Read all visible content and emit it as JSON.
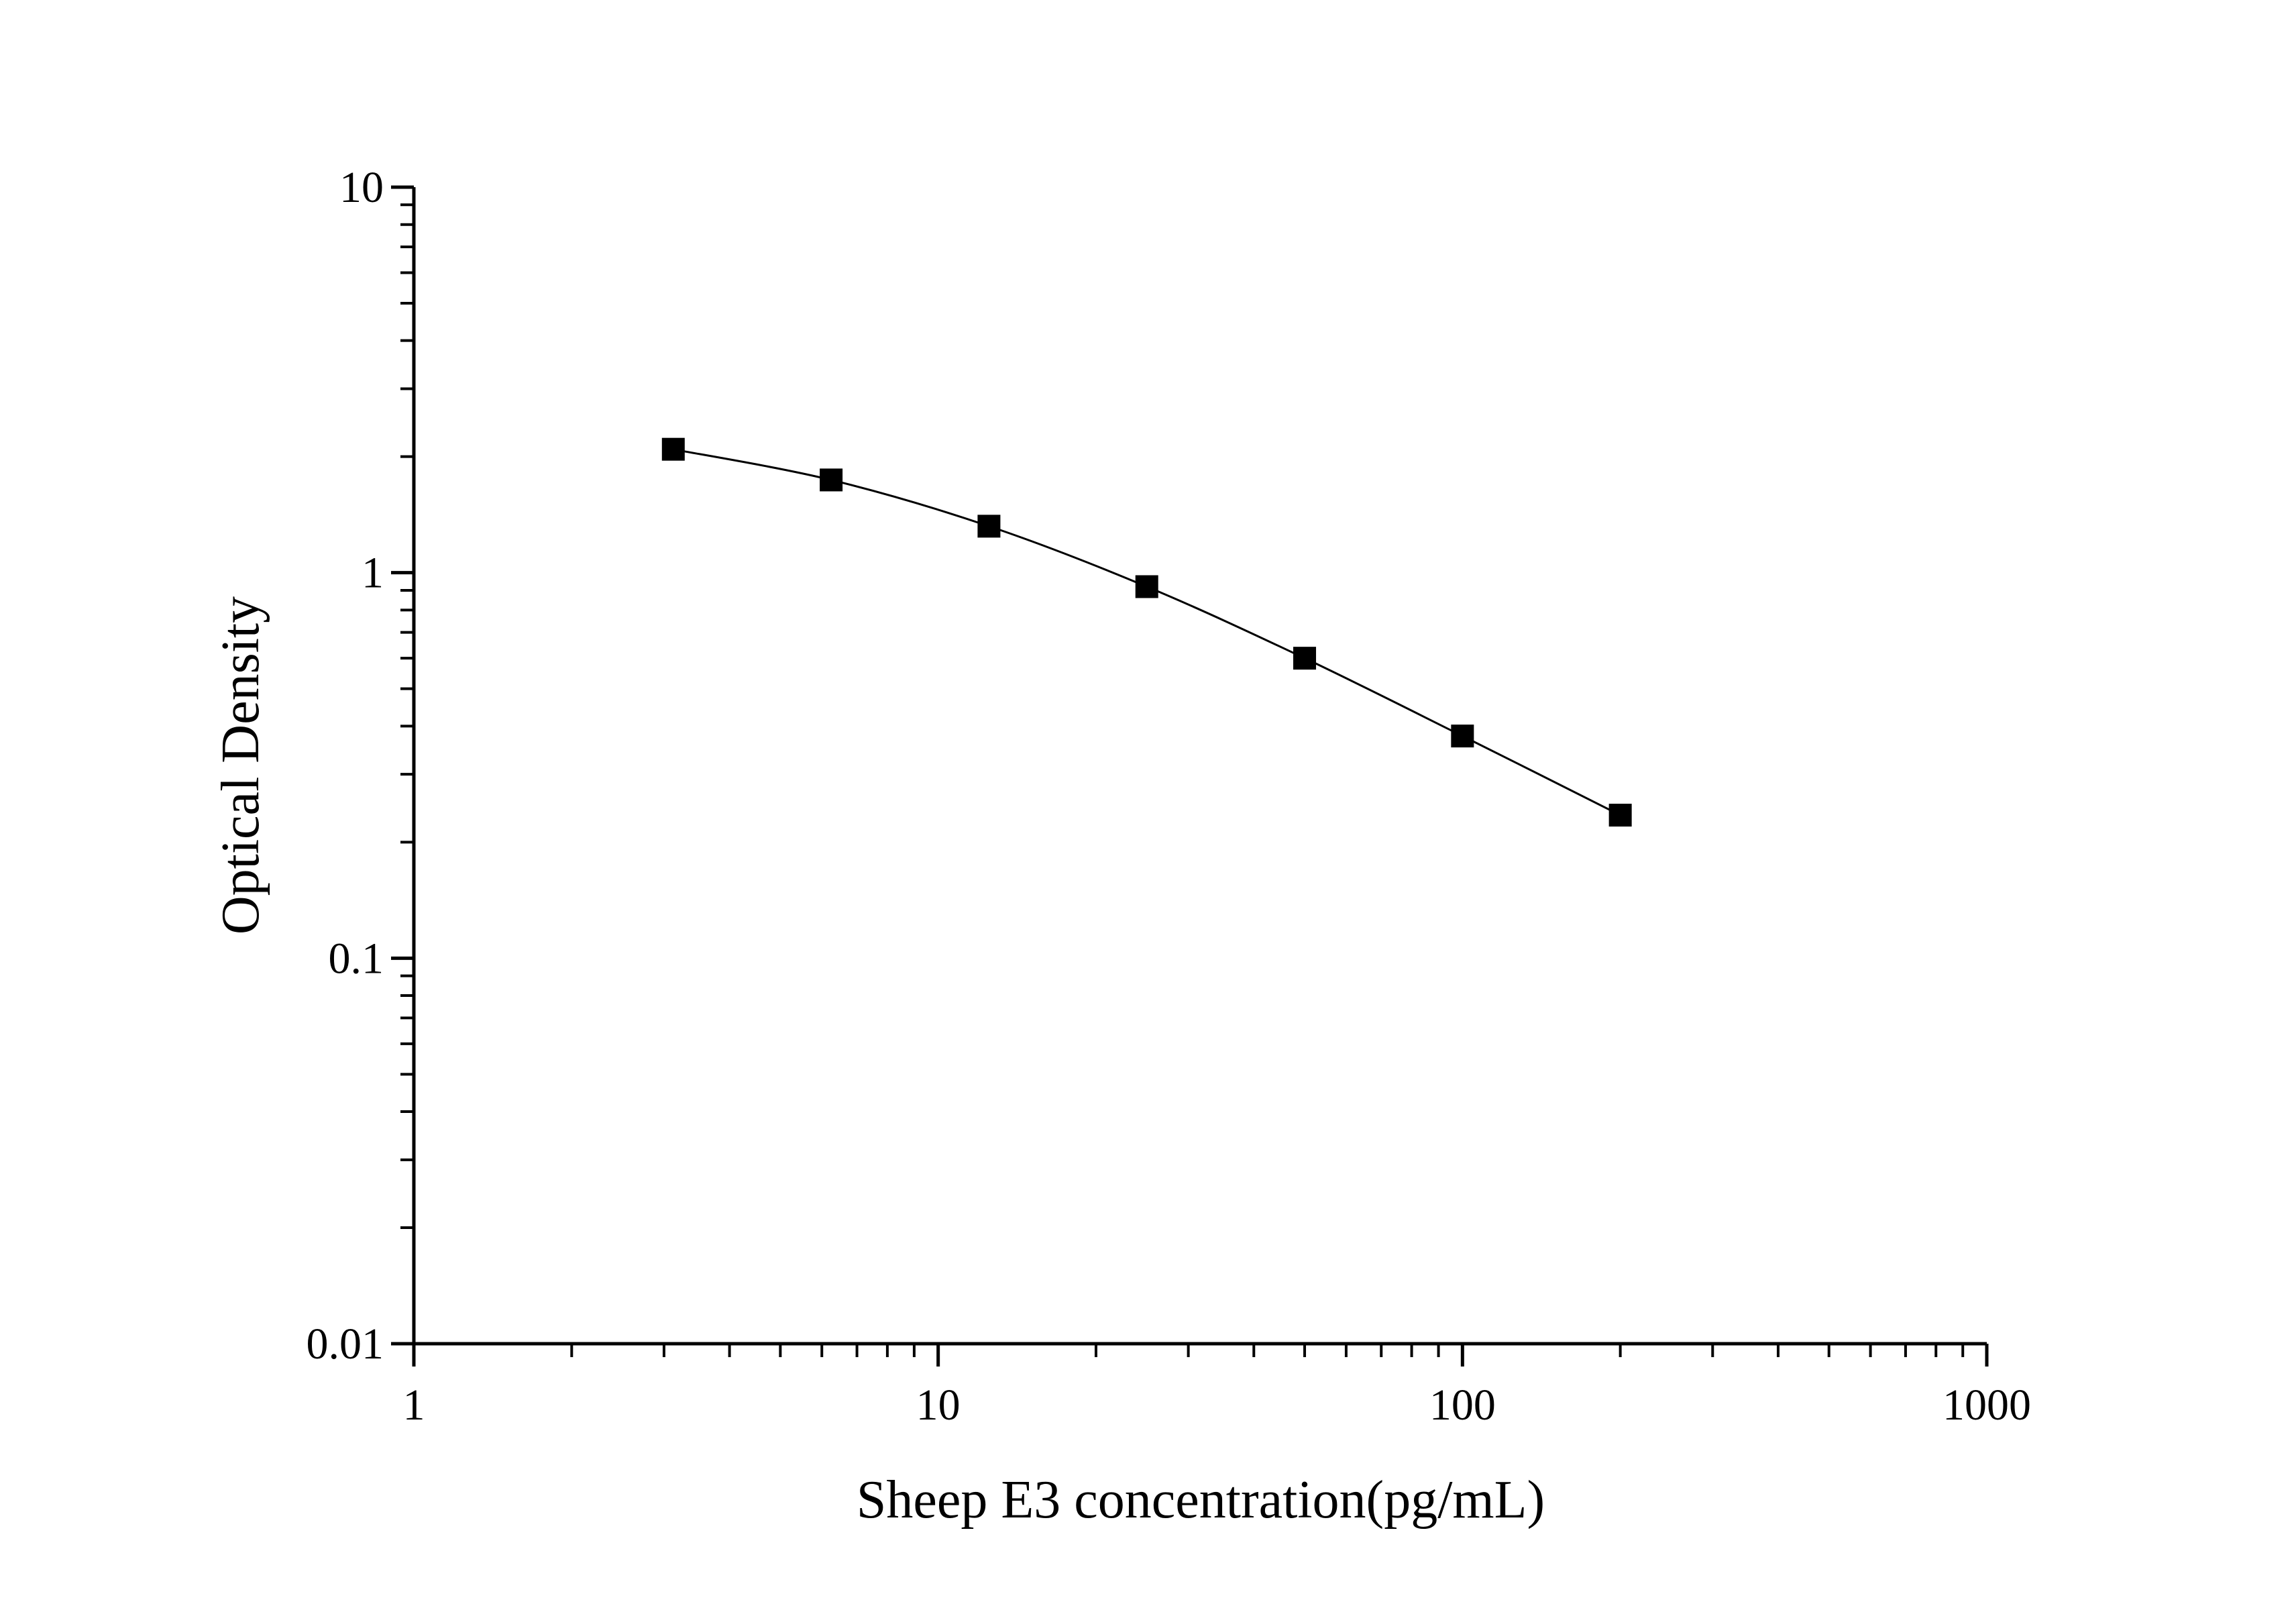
{
  "chart_data": {
    "type": "line",
    "title": "",
    "xlabel": "Sheep E3 concentration(pg/mL)",
    "ylabel": "Optical Density",
    "x_scale": "log",
    "y_scale": "log",
    "xlim": [
      1,
      1000
    ],
    "ylim": [
      0.01,
      10
    ],
    "x_ticks": [
      "1",
      "10",
      "100",
      "1000"
    ],
    "y_ticks": [
      "0.01",
      "0.1",
      "1",
      "10"
    ],
    "grid": false,
    "legend": "none",
    "marker": "square",
    "color": "#000000",
    "series": [
      {
        "x": [
          3.125,
          6.25,
          12.5,
          25,
          50,
          100,
          200
        ],
        "y": [
          2.09,
          1.74,
          1.32,
          0.92,
          0.6,
          0.377,
          0.235
        ]
      }
    ]
  }
}
